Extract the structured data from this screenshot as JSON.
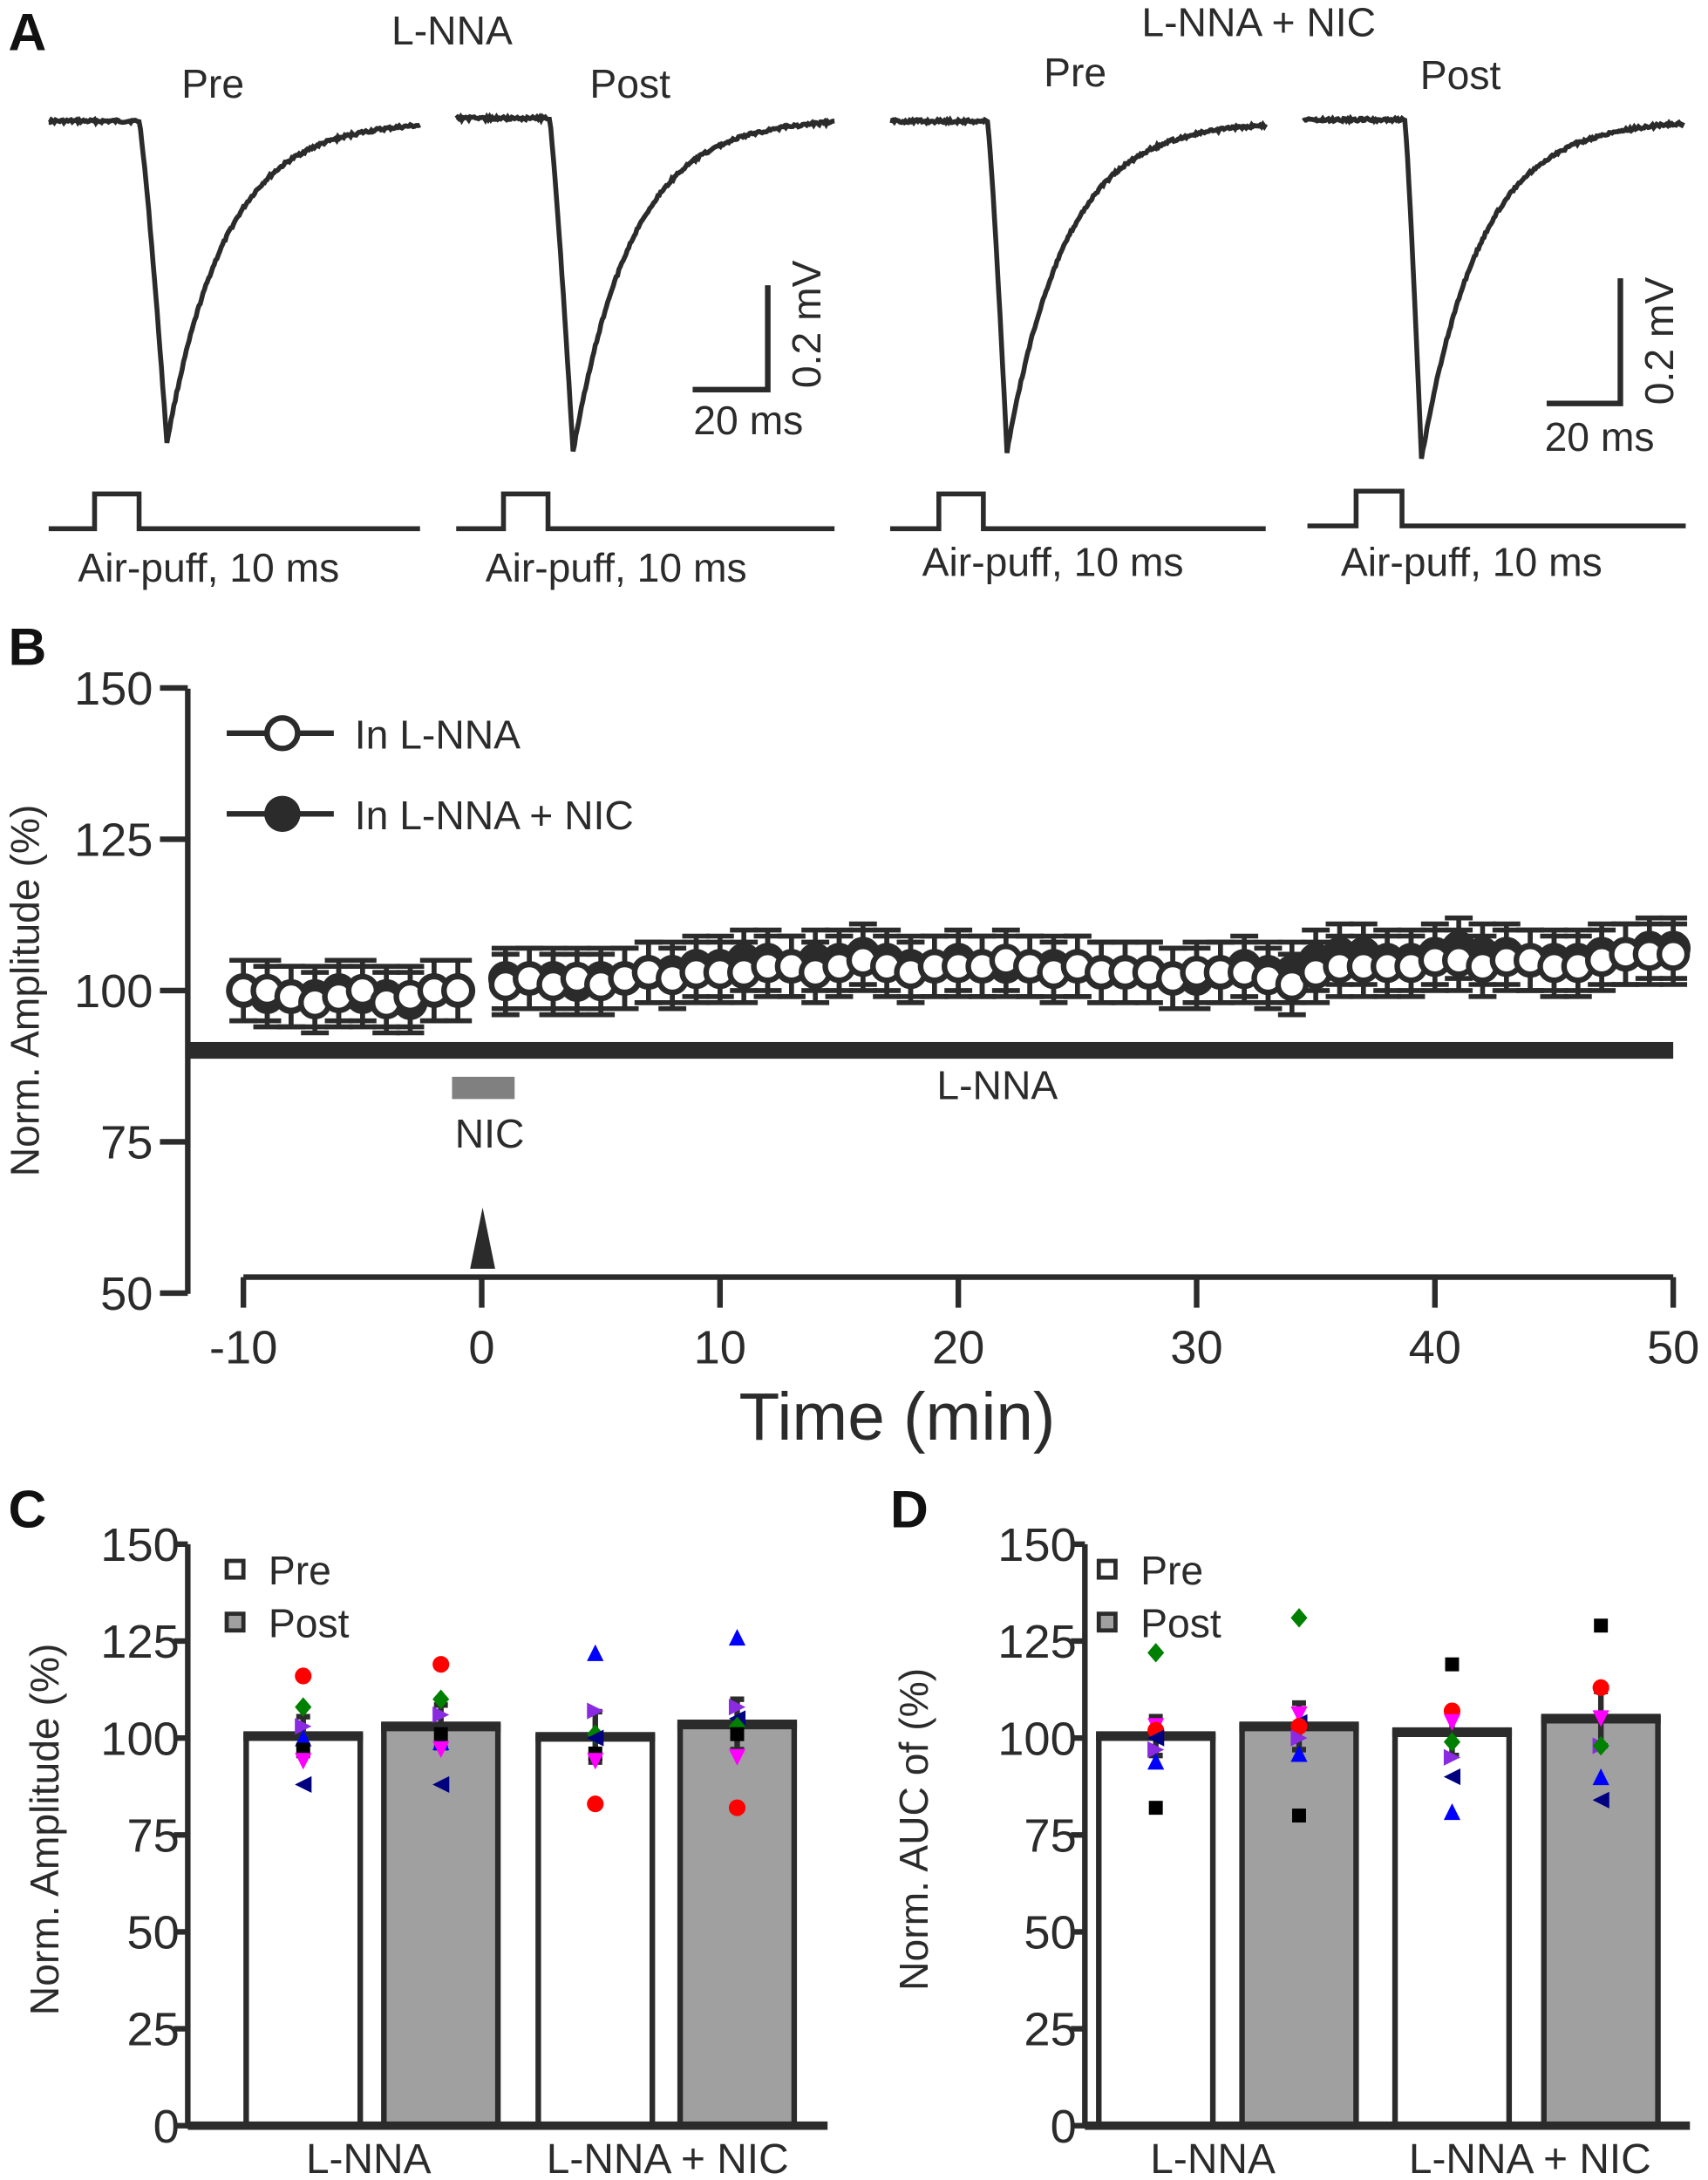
{
  "panel_labels": {
    "a": "A",
    "b": "B",
    "c": "C",
    "d": "D"
  },
  "panel_a": {
    "group1_title": "L-NNA",
    "group2_title": "L-NNA + NIC",
    "pre": "Pre",
    "post": "Post",
    "stimulus_label": "Air-puff, 10 ms",
    "scale_v": "0.2 mV",
    "scale_t": "20 ms"
  },
  "chart_data": [
    {
      "type": "line",
      "panel": "B",
      "xlabel": "Time (min)",
      "ylabel": "Norm. Amplitude (%)",
      "xlim": [
        -10,
        50
      ],
      "ylim": [
        50,
        150
      ],
      "xticks": [
        "-10",
        "0",
        "10",
        "20",
        "30",
        "40",
        "50"
      ],
      "yticks": [
        "50",
        "75",
        "100",
        "125",
        "150"
      ],
      "legend_position": "top-left",
      "annotations": {
        "drug_bar": "L-NNA",
        "nic_bar": "NIC"
      },
      "x": [
        -10,
        -9,
        -8,
        -7,
        -6,
        -5,
        -4,
        -3,
        -2,
        -1,
        1,
        2,
        3,
        4,
        5,
        6,
        7,
        8,
        9,
        10,
        11,
        12,
        13,
        14,
        15,
        16,
        17,
        18,
        19,
        20,
        21,
        22,
        23,
        24,
        25,
        26,
        27,
        28,
        29,
        30,
        31,
        32,
        33,
        34,
        35,
        36,
        37,
        38,
        39,
        40,
        41,
        42,
        43,
        44,
        45,
        46,
        47,
        48,
        49,
        50
      ],
      "series": [
        {
          "name": "In L-NNA",
          "marker": "open-circle",
          "sem": 5,
          "values": [
            100,
            100,
            99,
            98,
            99,
            100,
            98,
            99,
            100,
            100,
            101,
            102,
            101,
            102,
            101,
            102,
            103,
            102,
            103,
            103,
            103,
            104,
            104,
            103,
            104,
            105,
            104,
            103,
            104,
            104,
            104,
            105,
            104,
            103,
            104,
            103,
            103,
            103,
            102,
            103,
            103,
            103,
            102,
            101,
            103,
            104,
            104,
            104,
            104,
            105,
            105,
            104,
            105,
            105,
            104,
            104,
            105,
            106,
            106,
            106
          ]
        },
        {
          "name": "In L-NNA + NIC",
          "marker": "filled-circle",
          "sem": 5,
          "values": [
            100,
            99,
            99,
            99,
            100,
            99,
            99,
            98,
            100,
            100,
            102,
            102,
            102,
            101,
            102,
            102,
            103,
            103,
            104,
            104,
            105,
            105,
            104,
            105,
            105,
            106,
            105,
            104,
            104,
            105,
            104,
            104,
            104,
            104,
            104,
            103,
            103,
            103,
            102,
            102,
            103,
            104,
            103,
            103,
            105,
            106,
            106,
            105,
            105,
            106,
            107,
            106,
            106,
            105,
            105,
            105,
            106,
            106,
            107,
            107
          ]
        }
      ]
    },
    {
      "type": "bar",
      "panel": "C",
      "ylabel": "Norm. Amplitude (%)",
      "ylim": [
        0,
        150
      ],
      "yticks": [
        "0",
        "25",
        "50",
        "75",
        "100",
        "125",
        "150"
      ],
      "categories": [
        "L-NNA",
        "L-NNA + NIC"
      ],
      "legend": [
        "Pre",
        "Post"
      ],
      "series": [
        {
          "name": "Pre",
          "values": [
            100.5,
            100.3
          ],
          "sem": [
            5,
            6.5
          ]
        },
        {
          "name": "Post",
          "values": [
            103,
            103.5
          ],
          "sem": [
            5.5,
            6.5
          ]
        }
      ],
      "points": [
        [
          {
            "v": 116,
            "c": "#ff0000",
            "s": "circle"
          },
          {
            "v": 108,
            "c": "#008000",
            "s": "diamond"
          },
          {
            "v": 103,
            "c": "#8a2be2",
            "s": "tri-right"
          },
          {
            "v": 100,
            "c": "#0000ff",
            "s": "tri-up"
          },
          {
            "v": 97,
            "c": "#000000",
            "s": "square"
          },
          {
            "v": 94,
            "c": "#ff00ff",
            "s": "tri-down"
          },
          {
            "v": 88,
            "c": "#000080",
            "s": "tri-left"
          }
        ],
        [
          {
            "v": 119,
            "c": "#ff0000",
            "s": "circle"
          },
          {
            "v": 110,
            "c": "#008000",
            "s": "diamond"
          },
          {
            "v": 106,
            "c": "#8a2be2",
            "s": "tri-right"
          },
          {
            "v": 99,
            "c": "#0000ff",
            "s": "tri-up"
          },
          {
            "v": 101,
            "c": "#000000",
            "s": "square"
          },
          {
            "v": 97,
            "c": "#ff00ff",
            "s": "tri-down"
          },
          {
            "v": 88,
            "c": "#000080",
            "s": "tri-left"
          }
        ],
        [
          {
            "v": 122,
            "c": "#0000ff",
            "s": "tri-up"
          },
          {
            "v": 107,
            "c": "#8a2be2",
            "s": "tri-right"
          },
          {
            "v": 101,
            "c": "#008000",
            "s": "diamond"
          },
          {
            "v": 100,
            "c": "#000080",
            "s": "tri-left"
          },
          {
            "v": 96,
            "c": "#000000",
            "s": "square"
          },
          {
            "v": 94,
            "c": "#ff00ff",
            "s": "tri-down"
          },
          {
            "v": 83,
            "c": "#ff0000",
            "s": "circle"
          }
        ],
        [
          {
            "v": 126,
            "c": "#0000ff",
            "s": "tri-up"
          },
          {
            "v": 108,
            "c": "#8a2be2",
            "s": "tri-right"
          },
          {
            "v": 105,
            "c": "#000080",
            "s": "tri-left"
          },
          {
            "v": 103,
            "c": "#008000",
            "s": "diamond"
          },
          {
            "v": 101,
            "c": "#000000",
            "s": "square"
          },
          {
            "v": 95,
            "c": "#ff00ff",
            "s": "tri-down"
          },
          {
            "v": 82,
            "c": "#ff0000",
            "s": "circle"
          }
        ]
      ]
    },
    {
      "type": "bar",
      "panel": "D",
      "ylabel": "Norm. AUC of (%)",
      "ylim": [
        0,
        150
      ],
      "yticks": [
        "0",
        "25",
        "50",
        "75",
        "100",
        "125",
        "150"
      ],
      "categories": [
        "L-NNA",
        "L-NNA + NIC"
      ],
      "legend": [
        "Pre",
        "Post"
      ],
      "series": [
        {
          "name": "Pre",
          "values": [
            100.5,
            101.5
          ],
          "sem": [
            5,
            6
          ]
        },
        {
          "name": "Post",
          "values": [
            103,
            105
          ],
          "sem": [
            6,
            7
          ]
        }
      ],
      "points": [
        [
          {
            "v": 122,
            "c": "#008000",
            "s": "diamond"
          },
          {
            "v": 103,
            "c": "#ff00ff",
            "s": "tri-down"
          },
          {
            "v": 102,
            "c": "#ff0000",
            "s": "circle"
          },
          {
            "v": 100,
            "c": "#000080",
            "s": "tri-left"
          },
          {
            "v": 97,
            "c": "#8a2be2",
            "s": "tri-right"
          },
          {
            "v": 94,
            "c": "#0000ff",
            "s": "tri-up"
          },
          {
            "v": 82,
            "c": "#000000",
            "s": "square"
          }
        ],
        [
          {
            "v": 131,
            "c": "#008000",
            "s": "diamond"
          },
          {
            "v": 106,
            "c": "#ff00ff",
            "s": "tri-down"
          },
          {
            "v": 104,
            "c": "#000080",
            "s": "tri-left"
          },
          {
            "v": 103,
            "c": "#ff0000",
            "s": "circle"
          },
          {
            "v": 100,
            "c": "#8a2be2",
            "s": "tri-right"
          },
          {
            "v": 96,
            "c": "#0000ff",
            "s": "tri-up"
          },
          {
            "v": 80,
            "c": "#000000",
            "s": "square"
          }
        ],
        [
          {
            "v": 119,
            "c": "#000000",
            "s": "square"
          },
          {
            "v": 107,
            "c": "#ff0000",
            "s": "circle"
          },
          {
            "v": 104,
            "c": "#ff00ff",
            "s": "tri-down"
          },
          {
            "v": 99,
            "c": "#008000",
            "s": "diamond"
          },
          {
            "v": 95,
            "c": "#8a2be2",
            "s": "tri-right"
          },
          {
            "v": 90,
            "c": "#000080",
            "s": "tri-left"
          },
          {
            "v": 81,
            "c": "#0000ff",
            "s": "tri-up"
          }
        ],
        [
          {
            "v": 129,
            "c": "#000000",
            "s": "square"
          },
          {
            "v": 113,
            "c": "#ff0000",
            "s": "circle"
          },
          {
            "v": 105,
            "c": "#ff00ff",
            "s": "tri-down"
          },
          {
            "v": 98,
            "c": "#8a2be2",
            "s": "tri-right"
          },
          {
            "v": 98,
            "c": "#008000",
            "s": "diamond"
          },
          {
            "v": 90,
            "c": "#0000ff",
            "s": "tri-up"
          },
          {
            "v": 84,
            "c": "#000080",
            "s": "tri-left"
          }
        ]
      ]
    }
  ],
  "colors": {
    "ink": "#2b2b2b",
    "post_bar": "#a0a0a0",
    "nic_bar": "#808080"
  }
}
